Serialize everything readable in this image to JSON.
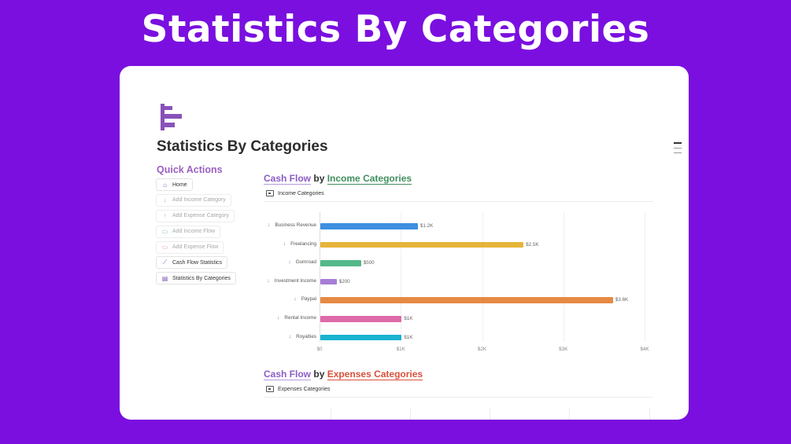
{
  "hero": {
    "title": "Statistics By Categories"
  },
  "page": {
    "title": "Statistics By Categories",
    "icon": "bar-chart-icon"
  },
  "quick_actions": {
    "title": "Quick Actions",
    "items": [
      {
        "label": "Home",
        "icon": "home-icon",
        "muted": false
      },
      {
        "label": "Add Income Category",
        "icon": "arrow-down-icon",
        "muted": true
      },
      {
        "label": "Add Expense Category",
        "icon": "arrow-up-icon",
        "muted": true
      },
      {
        "label": "Add Income Flow",
        "icon": "money-icon",
        "muted": true
      },
      {
        "label": "Add Expense Flow",
        "icon": "money-out-icon",
        "muted": true
      },
      {
        "label": "Cash Flow Statistics",
        "icon": "line-chart-icon",
        "muted": false
      },
      {
        "label": "Statistics By Categories",
        "icon": "bar-chart-icon",
        "muted": false
      }
    ]
  },
  "income_section": {
    "title_part1": "Cash Flow",
    "title_by": "by",
    "title_part2": "Income Categories",
    "view_label": "Income Categories"
  },
  "expense_section": {
    "title_part1": "Cash Flow",
    "title_by": "by",
    "title_part2": "Expenses Categories",
    "view_label": "Expenses Categories"
  },
  "chart_data": {
    "type": "bar",
    "orientation": "horizontal",
    "categories": [
      "Business Revenue",
      "Freelancing",
      "Gumroad",
      "Investment Income",
      "Paypal",
      "Rental Income",
      "Royalties"
    ],
    "values": [
      1200,
      2500,
      500,
      200,
      3600,
      1000,
      1000
    ],
    "value_labels": [
      "$1.2K",
      "$2.5K",
      "$500",
      "$200",
      "$3.6K",
      "$1K",
      "$1K"
    ],
    "colors": [
      "#3d8fe0",
      "#e5b43a",
      "#54b98a",
      "#a77ed8",
      "#e58a45",
      "#de6aa8",
      "#1ab3d0"
    ],
    "xlim": [
      0,
      4000
    ],
    "x_ticks": [
      "$0",
      "$1K",
      "$2K",
      "$3K",
      "$4K"
    ],
    "grid": true
  }
}
